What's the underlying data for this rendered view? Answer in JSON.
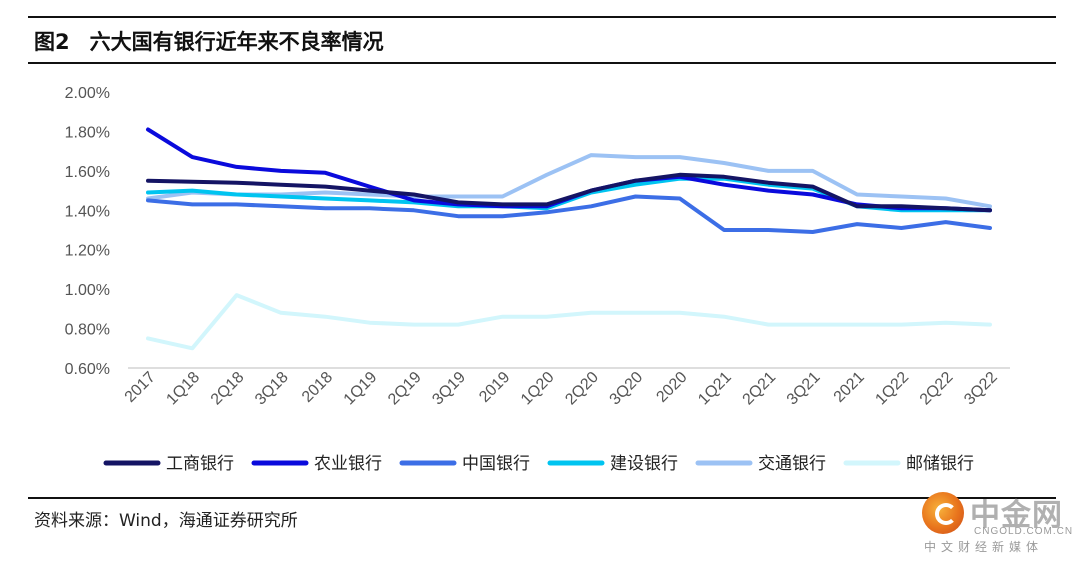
{
  "figure": {
    "number": "图2",
    "title": "六大国有银行近年来不良率情况",
    "source": "资料来源：Wind，海通证券研究所"
  },
  "watermark": {
    "name": "中金网",
    "domain": "CNGOLD.COM.CN",
    "tagline": "中文财经新媒体"
  },
  "chart_data": {
    "type": "line",
    "ylim": [
      0.6,
      2.0
    ],
    "yticks": [
      0.6,
      0.8,
      1.0,
      1.2,
      1.4,
      1.6,
      1.8,
      2.0
    ],
    "ytick_labels": [
      "0.60%",
      "0.80%",
      "1.00%",
      "1.20%",
      "1.40%",
      "1.60%",
      "1.80%",
      "2.00%"
    ],
    "grid": false,
    "legend_position": "bottom",
    "categories": [
      "2017",
      "1Q18",
      "2Q18",
      "3Q18",
      "2018",
      "1Q19",
      "2Q19",
      "3Q19",
      "2019",
      "1Q20",
      "2Q20",
      "3Q20",
      "2020",
      "1Q21",
      "2Q21",
      "3Q21",
      "2021",
      "1Q22",
      "2Q22",
      "3Q22"
    ],
    "series": [
      {
        "name": "工商银行",
        "color": "#141464",
        "values": [
          1.55,
          1.545,
          1.54,
          1.53,
          1.52,
          1.5,
          1.48,
          1.44,
          1.43,
          1.43,
          1.5,
          1.55,
          1.58,
          1.57,
          1.54,
          1.52,
          1.42,
          1.42,
          1.41,
          1.4
        ]
      },
      {
        "name": "农业银行",
        "color": "#0a0adc",
        "values": [
          1.81,
          1.67,
          1.62,
          1.6,
          1.59,
          1.52,
          1.45,
          1.43,
          1.42,
          1.42,
          1.5,
          1.55,
          1.57,
          1.53,
          1.5,
          1.48,
          1.43,
          1.41,
          1.41,
          1.4
        ]
      },
      {
        "name": "中国银行",
        "color": "#3c6ee6",
        "values": [
          1.45,
          1.43,
          1.43,
          1.42,
          1.41,
          1.41,
          1.4,
          1.37,
          1.37,
          1.39,
          1.42,
          1.47,
          1.46,
          1.3,
          1.3,
          1.29,
          1.33,
          1.31,
          1.34,
          1.31
        ]
      },
      {
        "name": "建设银行",
        "color": "#00c4f0",
        "values": [
          1.49,
          1.5,
          1.48,
          1.47,
          1.46,
          1.45,
          1.44,
          1.42,
          1.42,
          1.41,
          1.49,
          1.53,
          1.56,
          1.56,
          1.53,
          1.51,
          1.42,
          1.4,
          1.4,
          1.4
        ]
      },
      {
        "name": "交通银行",
        "color": "#9cc2f4",
        "values": [
          1.46,
          1.49,
          1.48,
          1.48,
          1.49,
          1.48,
          1.47,
          1.47,
          1.47,
          1.58,
          1.68,
          1.67,
          1.67,
          1.64,
          1.6,
          1.6,
          1.48,
          1.47,
          1.46,
          1.42
        ]
      },
      {
        "name": "邮储银行",
        "color": "#d2f6fc",
        "values": [
          0.75,
          0.7,
          0.97,
          0.88,
          0.86,
          0.83,
          0.82,
          0.82,
          0.86,
          0.86,
          0.88,
          0.88,
          0.88,
          0.86,
          0.82,
          0.82,
          0.82,
          0.82,
          0.83,
          0.82
        ]
      }
    ]
  }
}
